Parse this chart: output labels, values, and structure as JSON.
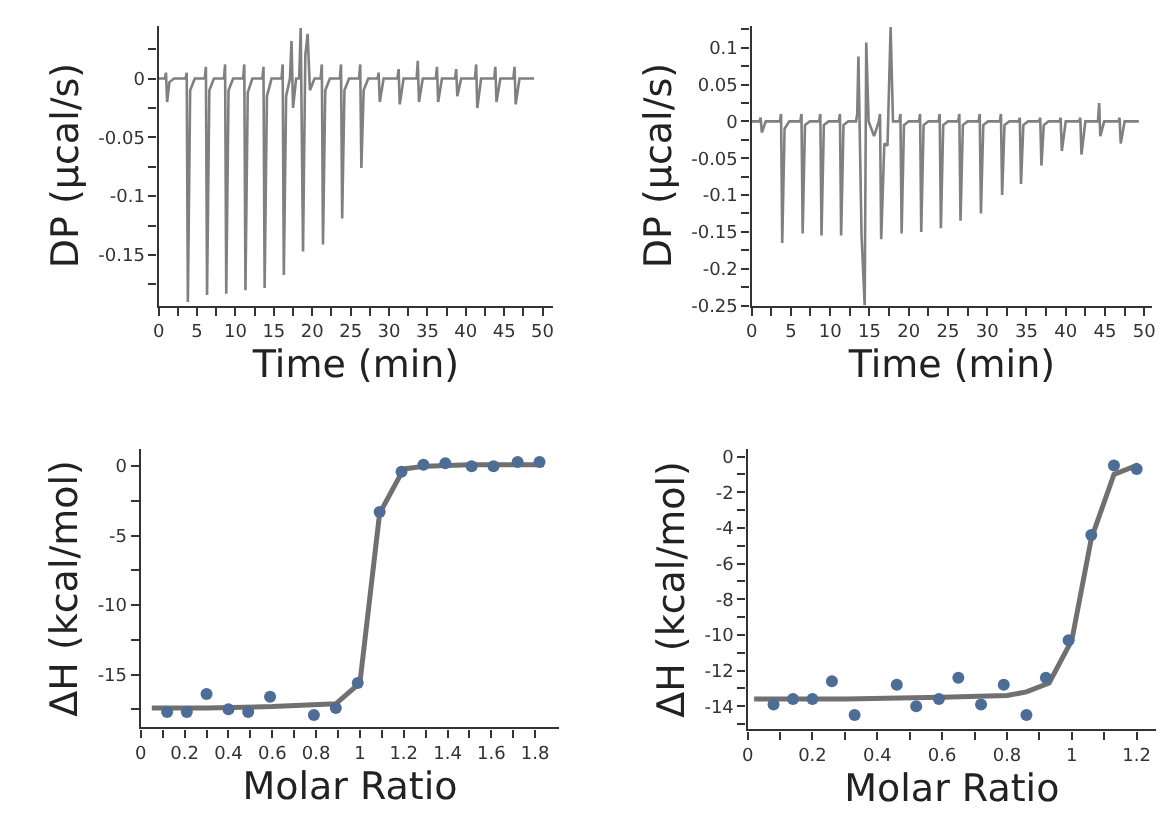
{
  "chart_data": [
    {
      "type": "line",
      "xlabel": "Time (min)",
      "ylabel": "DP (µcal/s)",
      "grid": false,
      "legend": false,
      "marker": "none",
      "line_style": "solid",
      "xlim": [
        0,
        51.4
      ],
      "ylim": [
        -0.193,
        0.045
      ],
      "xticks": [
        0,
        {
          "value": 2.5,
          "label": null
        },
        5,
        {
          "value": 7.5,
          "label": null
        },
        10,
        {
          "value": 12.5,
          "label": null
        },
        15,
        {
          "value": 17.5,
          "label": null
        },
        20,
        {
          "value": 22.5,
          "label": null
        },
        25,
        {
          "value": 27.5,
          "label": null
        },
        30,
        {
          "value": 32.5,
          "label": null
        },
        35,
        {
          "value": 37.5,
          "label": null
        },
        40,
        {
          "value": 42.5,
          "label": null
        },
        45,
        {
          "value": 47.5,
          "label": null
        },
        50
      ],
      "yticks": [
        {
          "value": -0.175,
          "label": null
        },
        -0.15,
        {
          "value": -0.125,
          "label": null
        },
        -0.1,
        {
          "value": -0.075,
          "label": null
        },
        -0.05,
        {
          "value": -0.025,
          "label": null
        },
        0,
        {
          "value": 0.025,
          "label": null
        }
      ],
      "series": [
        {
          "color": "#808080",
          "x": [
            0,
            0.8,
            0.95,
            1.1,
            1.4,
            2.0,
            3.5,
            3.65,
            3.8,
            4.1,
            4.7,
            6.0,
            6.15,
            6.3,
            6.6,
            7.2,
            8.5,
            8.65,
            8.8,
            9.1,
            9.7,
            11.0,
            11.15,
            11.3,
            11.6,
            12.2,
            13.5,
            13.65,
            13.8,
            14.1,
            14.7,
            16.0,
            16.15,
            16.3,
            16.6,
            17.1,
            17.3,
            17.5,
            17.9,
            18.3,
            18.5,
            18.8,
            19.1,
            19.4,
            19.7,
            20.3,
            21.1,
            21.25,
            21.4,
            21.7,
            22.3,
            23.6,
            23.75,
            23.9,
            24.2,
            24.8,
            26.1,
            26.25,
            26.4,
            26.7,
            27.3,
            28.5,
            28.65,
            28.8,
            29.3,
            31.1,
            31.25,
            31.4,
            31.9,
            33.6,
            33.75,
            33.9,
            34.4,
            36.1,
            36.25,
            36.4,
            36.9,
            38.6,
            38.75,
            38.9,
            39.4,
            41.2,
            41.35,
            41.5,
            42.0,
            43.7,
            43.85,
            44.0,
            44.5,
            46.2,
            46.35,
            46.5,
            47.0,
            48.9
          ],
          "values": [
            0,
            0,
            0.005,
            -0.02,
            -0.003,
            0,
            0,
            0.005,
            -0.19,
            -0.01,
            0,
            0,
            0.01,
            -0.184,
            -0.01,
            0,
            0,
            0.012,
            -0.183,
            -0.01,
            0,
            0,
            0.012,
            -0.18,
            -0.012,
            0,
            0,
            0.01,
            -0.178,
            -0.015,
            0,
            0,
            0.012,
            -0.167,
            -0.015,
            0,
            0.032,
            -0.025,
            0,
            0,
            0.043,
            -0.147,
            0.02,
            0.038,
            -0.01,
            0,
            0,
            0.012,
            -0.141,
            -0.01,
            0,
            0,
            0.012,
            -0.119,
            -0.01,
            0,
            0,
            0.012,
            -0.076,
            -0.01,
            0,
            0,
            0.005,
            -0.02,
            0,
            0,
            0.008,
            -0.022,
            0,
            0,
            0.015,
            -0.02,
            0,
            0,
            0.01,
            -0.02,
            0,
            0,
            0.008,
            -0.015,
            0,
            0,
            0.012,
            -0.025,
            0,
            0,
            0.01,
            -0.02,
            0,
            0,
            0.01,
            -0.022,
            0,
            0
          ]
        }
      ]
    },
    {
      "type": "line",
      "xlabel": "Time (min)",
      "ylabel": "DP (µcal/s)",
      "grid": false,
      "legend": false,
      "marker": "none",
      "line_style": "solid",
      "xlim": [
        0,
        51
      ],
      "ylim": [
        -0.25,
        0.13
      ],
      "xticks": [
        0,
        {
          "value": 2.5,
          "label": null
        },
        5,
        {
          "value": 7.5,
          "label": null
        },
        10,
        {
          "value": 12.5,
          "label": null
        },
        15,
        {
          "value": 17.5,
          "label": null
        },
        20,
        {
          "value": 22.5,
          "label": null
        },
        25,
        {
          "value": 27.5,
          "label": null
        },
        30,
        {
          "value": 32.5,
          "label": null
        },
        35,
        {
          "value": 37.5,
          "label": null
        },
        40,
        {
          "value": 42.5,
          "label": null
        },
        45,
        {
          "value": 47.5,
          "label": null
        },
        50
      ],
      "yticks": [
        -0.25,
        {
          "value": -0.225,
          "label": null
        },
        -0.2,
        {
          "value": -0.175,
          "label": null
        },
        -0.15,
        {
          "value": -0.125,
          "label": null
        },
        -0.1,
        {
          "value": -0.075,
          "label": null
        },
        -0.05,
        {
          "value": -0.025,
          "label": null
        },
        0,
        {
          "value": 0.025,
          "label": null
        },
        0.05,
        {
          "value": 0.075,
          "label": null
        },
        0.1,
        {
          "value": 0.125,
          "label": null
        }
      ],
      "series": [
        {
          "color": "#808080",
          "x": [
            0,
            1.0,
            1.15,
            1.3,
            1.8,
            3.6,
            3.75,
            3.9,
            4.2,
            4.8,
            6.2,
            6.35,
            6.5,
            6.8,
            7.4,
            8.6,
            8.75,
            8.9,
            9.2,
            9.8,
            11.1,
            11.25,
            11.4,
            11.7,
            12.3,
            13.3,
            13.45,
            13.6,
            14.0,
            14.4,
            14.6,
            14.9,
            15.6,
            16.2,
            16.35,
            16.5,
            16.9,
            17.3,
            17.7,
            18.0,
            18.8,
            18.95,
            19.1,
            19.4,
            20.0,
            21.3,
            21.45,
            21.6,
            21.9,
            22.5,
            23.8,
            23.95,
            24.1,
            24.4,
            25.0,
            26.3,
            26.45,
            26.6,
            26.9,
            27.5,
            28.9,
            29.05,
            29.2,
            29.5,
            30.1,
            31.6,
            31.75,
            31.9,
            32.2,
            32.8,
            34.0,
            34.15,
            34.3,
            34.6,
            35.2,
            36.6,
            36.75,
            36.9,
            37.2,
            37.8,
            39.2,
            39.35,
            39.5,
            40.0,
            41.7,
            41.85,
            42.0,
            42.5,
            44.1,
            44.25,
            44.4,
            44.9,
            46.7,
            46.85,
            47.0,
            47.5,
            49.3
          ],
          "values": [
            0,
            0,
            0.005,
            -0.015,
            0,
            0,
            0.01,
            -0.165,
            -0.01,
            0,
            0,
            0.01,
            -0.152,
            -0.005,
            0,
            0,
            0.01,
            -0.155,
            -0.005,
            0,
            0,
            0.01,
            -0.155,
            -0.005,
            0,
            0,
            0.01,
            0.088,
            -0.155,
            -0.25,
            0.107,
            0,
            -0.02,
            0,
            0.01,
            -0.16,
            -0.03,
            -0.033,
            0.128,
            0,
            0,
            0.01,
            -0.152,
            -0.005,
            0,
            0,
            0.01,
            -0.15,
            -0.005,
            0,
            0,
            0.01,
            -0.145,
            -0.005,
            0,
            0,
            0.01,
            -0.135,
            -0.005,
            0,
            0,
            0.01,
            -0.125,
            -0.005,
            0,
            0,
            0.01,
            -0.1,
            -0.005,
            0,
            0,
            0.005,
            -0.085,
            -0.005,
            0,
            0,
            0.005,
            -0.06,
            -0.005,
            0,
            0,
            0.005,
            -0.04,
            0,
            0,
            0.005,
            -0.045,
            0,
            0,
            0.025,
            -0.02,
            0,
            0,
            0.005,
            -0.03,
            0,
            0
          ]
        }
      ]
    },
    {
      "type": "scatter",
      "xlabel": "Molar Ratio",
      "ylabel": "ΔH (kcal/mol)",
      "grid": false,
      "legend": false,
      "marker": "circle",
      "xlim": [
        0,
        1.91
      ],
      "ylim": [
        -18.8,
        1.2
      ],
      "xticks": [
        0,
        {
          "value": 0.1,
          "label": null
        },
        0.2,
        {
          "value": 0.3,
          "label": null
        },
        0.4,
        {
          "value": 0.5,
          "label": null
        },
        0.6,
        {
          "value": 0.7,
          "label": null
        },
        0.8,
        {
          "value": 0.9,
          "label": null
        },
        1,
        {
          "value": 1.1,
          "label": null
        },
        1.2,
        {
          "value": 1.3,
          "label": null
        },
        1.4,
        {
          "value": 1.5,
          "label": null
        },
        1.6,
        {
          "value": 1.7,
          "label": null
        },
        1.8
      ],
      "yticks": [
        {
          "value": -17.5,
          "label": null
        },
        -15,
        {
          "value": -12.5,
          "label": null
        },
        -10,
        {
          "value": -7.5,
          "label": null
        },
        -5,
        {
          "value": -2.5,
          "label": null
        },
        0
      ],
      "series": [
        {
          "type": "line",
          "marker": "none",
          "color": "#707070",
          "x": [
            0.05,
            0.3,
            0.6,
            0.89,
            1.0,
            1.09,
            1.2,
            1.3,
            1.5,
            1.84
          ],
          "values": [
            -17.4,
            -17.4,
            -17.3,
            -17.1,
            -15.6,
            -3.4,
            -0.2,
            0.0,
            0.1,
            0.1
          ]
        },
        {
          "color": "#4e6d96",
          "x": [
            0.12,
            0.21,
            0.3,
            0.4,
            0.49,
            0.59,
            0.79,
            0.89,
            0.99,
            1.09,
            1.19,
            1.29,
            1.39,
            1.51,
            1.61,
            1.72,
            1.82
          ],
          "values": [
            -17.7,
            -17.7,
            -16.4,
            -17.5,
            -17.7,
            -16.6,
            -17.9,
            -17.4,
            -15.6,
            -3.3,
            -0.4,
            0.1,
            0.2,
            0.0,
            0.0,
            0.3,
            0.3
          ]
        }
      ]
    },
    {
      "type": "scatter",
      "xlabel": "Molar Ratio",
      "ylabel": "ΔH (kcal/mol)",
      "grid": false,
      "legend": false,
      "marker": "circle",
      "xlim": [
        0,
        1.26
      ],
      "ylim": [
        -15.3,
        0.4
      ],
      "xticks": [
        0,
        {
          "value": 0.1,
          "label": null
        },
        0.2,
        {
          "value": 0.3,
          "label": null
        },
        0.4,
        {
          "value": 0.5,
          "label": null
        },
        0.6,
        {
          "value": 0.7,
          "label": null
        },
        0.8,
        {
          "value": 0.9,
          "label": null
        },
        1,
        {
          "value": 1.1,
          "label": null
        },
        1.2
      ],
      "yticks": [
        {
          "value": -15,
          "label": null
        },
        -14,
        {
          "value": -13,
          "label": null
        },
        -12,
        {
          "value": -11,
          "label": null
        },
        -10,
        {
          "value": -9,
          "label": null
        },
        -8,
        {
          "value": -7,
          "label": null
        },
        -6,
        {
          "value": -5,
          "label": null
        },
        -4,
        {
          "value": -3,
          "label": null
        },
        -2,
        {
          "value": -1,
          "label": null
        },
        0
      ],
      "series": [
        {
          "type": "line",
          "marker": "none",
          "color": "#707070",
          "x": [
            0.02,
            0.3,
            0.6,
            0.8,
            0.86,
            0.93,
            1.0,
            1.06,
            1.13,
            1.2,
            1.21
          ],
          "values": [
            -13.6,
            -13.6,
            -13.5,
            -13.4,
            -13.2,
            -12.7,
            -10.3,
            -4.6,
            -1.0,
            -0.5,
            -0.7
          ]
        },
        {
          "color": "#4e6d96",
          "x": [
            0.08,
            0.14,
            0.2,
            0.26,
            0.33,
            0.46,
            0.52,
            0.59,
            0.65,
            0.72,
            0.79,
            0.86,
            0.92,
            0.99,
            1.06,
            1.13,
            1.2
          ],
          "values": [
            -13.9,
            -13.6,
            -13.6,
            -12.6,
            -14.5,
            -12.8,
            -14.0,
            -13.6,
            -12.4,
            -13.9,
            -12.8,
            -14.5,
            -12.4,
            -10.3,
            -4.4,
            -0.5,
            -0.7
          ]
        }
      ]
    }
  ]
}
